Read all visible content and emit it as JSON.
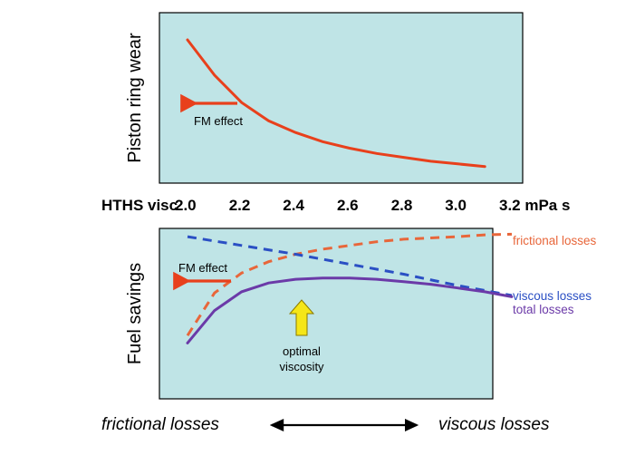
{
  "chart_data": [
    {
      "type": "line",
      "panel": "top",
      "ylabel": "Piston ring wear",
      "grid": false,
      "background": "#bfe4e6",
      "series": [
        {
          "color": "#e8401c",
          "x": [
            2.0,
            2.1,
            2.2,
            2.3,
            2.4,
            2.5,
            2.6,
            2.7,
            2.8,
            2.9,
            3.0,
            3.1
          ],
          "values": [
            1.0,
            0.73,
            0.52,
            0.38,
            0.29,
            0.22,
            0.17,
            0.13,
            0.1,
            0.07,
            0.05,
            0.03
          ]
        }
      ],
      "annotations": [
        {
          "text": "FM effect",
          "arrow_color": "#e8401c",
          "arrow_direction": "left"
        }
      ]
    },
    {
      "type": "line",
      "panel": "bottom",
      "ylabel": "Fuel savings",
      "grid": false,
      "background": "#bfe4e6",
      "series": [
        {
          "name": "frictional losses",
          "color": "#e8663a",
          "style": "dashed",
          "x": [
            2.0,
            2.1,
            2.2,
            2.3,
            2.4,
            2.5,
            2.6,
            2.7,
            2.8,
            2.9,
            3.0,
            3.1,
            3.2
          ],
          "values": [
            0.18,
            0.52,
            0.68,
            0.77,
            0.83,
            0.87,
            0.9,
            0.93,
            0.95,
            0.96,
            0.97,
            0.985,
            0.99
          ]
        },
        {
          "name": "viscous losses",
          "color": "#2a4fc4",
          "style": "dashed",
          "x": [
            2.0,
            2.2,
            2.4,
            2.6,
            2.8,
            3.0,
            3.2
          ],
          "values": [
            0.97,
            0.9,
            0.83,
            0.75,
            0.67,
            0.58,
            0.5
          ]
        },
        {
          "name": "total losses",
          "color": "#6b3aa8",
          "style": "solid",
          "x": [
            2.0,
            2.1,
            2.2,
            2.3,
            2.4,
            2.5,
            2.6,
            2.7,
            2.8,
            2.9,
            3.0,
            3.1,
            3.2
          ],
          "values": [
            0.12,
            0.38,
            0.53,
            0.6,
            0.63,
            0.64,
            0.64,
            0.63,
            0.61,
            0.59,
            0.56,
            0.53,
            0.49
          ]
        }
      ],
      "annotations": [
        {
          "text": "FM effect",
          "arrow_color": "#e8401c",
          "arrow_direction": "left"
        },
        {
          "text": "optimal viscosity",
          "lines": [
            "optimal",
            "viscosity"
          ],
          "arrow_color": "#f5e618",
          "arrow_direction": "up",
          "x": 2.5
        }
      ]
    }
  ],
  "axis": {
    "title": "HTHS visc",
    "ticks": [
      "2.0",
      "2.2",
      "2.4",
      "2.6",
      "2.8",
      "3.0",
      "3.2 mPa s"
    ],
    "tick_values": [
      2.0,
      2.2,
      2.4,
      2.6,
      2.8,
      3.0,
      3.2
    ],
    "range": [
      2.0,
      3.2
    ]
  },
  "bottom_legend": {
    "left_label": "frictional losses",
    "right_label": "viscous losses"
  },
  "colors": {
    "panel_bg": "#bfe4e6",
    "wear_curve": "#e8401c",
    "fm_arrow": "#e8401c",
    "frictional": "#e8663a",
    "viscous": "#2a4fc4",
    "total": "#6b3aa8",
    "optimal_arrow": "#f5e618"
  }
}
